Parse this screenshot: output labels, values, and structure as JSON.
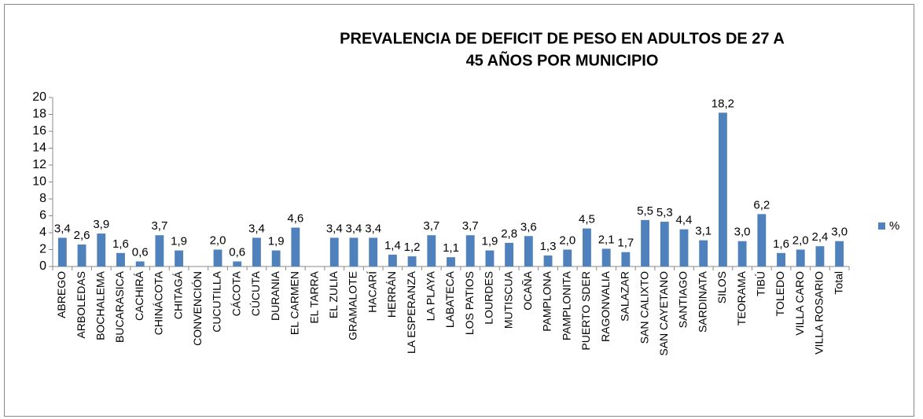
{
  "chart_data": {
    "type": "bar",
    "title": [
      "PREVALENCIA  DE DEFICIT DE PESO EN ADULTOS DE 27 A",
      "45 AÑOS POR MUNICIPIO"
    ],
    "categories": [
      "ABREGO",
      "ARBOLEDAS",
      "BOCHALEMA",
      "BUCARASICA",
      "CACHIRÁ",
      "CHINÁCOTA",
      "CHITAGÁ",
      "CONVENCIÓN",
      "CUCUTILLA",
      "CÁCOTA",
      "CÚCUTA",
      "DURANIA",
      "EL CARMEN",
      "EL TARRA",
      "EL ZULIA",
      "GRAMALOTE",
      "HACARÍ",
      "HERRÁN",
      "LA ESPERANZA",
      "LA PLAYA",
      "LABATECA",
      "LOS PATIOS",
      "LOURDES",
      "MUTISCUA",
      "OCAÑA",
      "PAMPLONA",
      "PAMPLONITA",
      "PUERTO  SDER",
      "RAGONVALIA",
      "SALAZAR",
      "SAN CALIXTO",
      "SAN CAYETANO",
      "SANTIAGO",
      "SARDINATA",
      "SILOS",
      "TEORAMA",
      "TIBÚ",
      "TOLEDO",
      "VILLA CARO",
      "VILLA  ROSARIO",
      "Total"
    ],
    "series": [
      {
        "name": "%",
        "color": "#4f81bd",
        "values": [
          3.4,
          2.6,
          3.9,
          1.6,
          0.6,
          3.7,
          1.9,
          null,
          2.0,
          0.6,
          3.4,
          1.9,
          4.6,
          null,
          3.4,
          3.4,
          3.4,
          1.4,
          1.2,
          3.7,
          1.1,
          3.7,
          1.9,
          2.8,
          3.6,
          1.3,
          2.0,
          4.5,
          2.1,
          1.7,
          5.5,
          5.3,
          4.4,
          3.1,
          18.2,
          3.0,
          6.2,
          1.6,
          2.0,
          2.4,
          3.0
        ],
        "value_labels": [
          "3,4",
          "2,6",
          "3,9",
          "1,6",
          "0,6",
          "3,7",
          "1,9",
          null,
          "2,0",
          "0,6",
          "3,4",
          "1,9",
          "4,6",
          null,
          "3,4",
          "3,4",
          "3,4",
          "1,4",
          "1,2",
          "3,7",
          "1,1",
          "3,7",
          "1,9",
          "2,8",
          "3,6",
          "1,3",
          "2,0",
          "4,5",
          "2,1",
          "1,7",
          "5,5",
          "5,3",
          "4,4",
          "3,1",
          "18,2",
          "3,0",
          "6,2",
          "1,6",
          "2,0",
          "2,4",
          "3,0"
        ]
      }
    ],
    "ylim": [
      0,
      20
    ],
    "yticks": [
      0,
      2,
      4,
      6,
      8,
      10,
      12,
      14,
      16,
      18,
      20
    ],
    "legend": "right"
  }
}
